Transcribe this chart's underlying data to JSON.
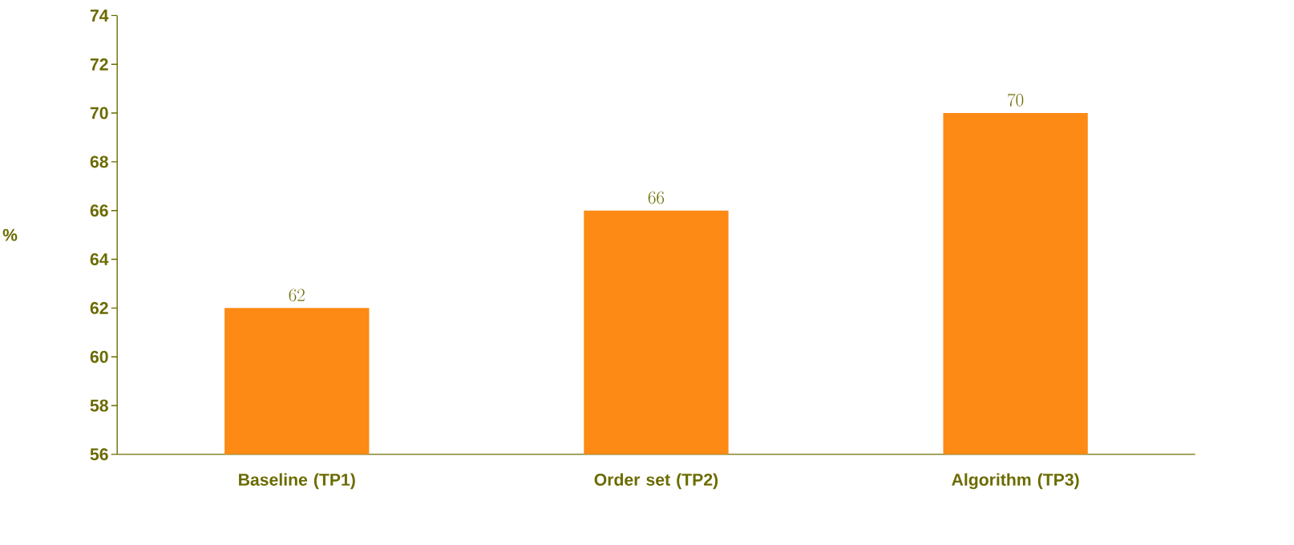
{
  "chart_data": {
    "type": "bar",
    "ylabel": "%",
    "categories": [
      "Baseline (TP1)",
      "Order set (TP2)",
      "Algorithm (TP3)"
    ],
    "values": [
      62,
      66,
      70
    ],
    "color": "#fd8a14",
    "ylim": [
      56,
      74
    ],
    "yticks": [
      56,
      58,
      60,
      62,
      64,
      66,
      68,
      70,
      72,
      74
    ],
    "data_labels": true
  }
}
